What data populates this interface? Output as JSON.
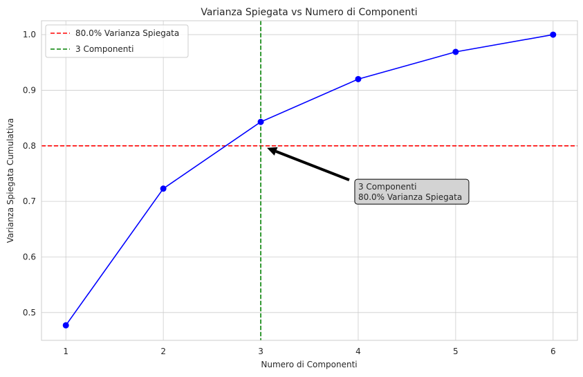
{
  "chart_data": {
    "type": "line",
    "title": "Varianza Spiegata vs Numero di Componenti",
    "xlabel": "Numero di Componenti",
    "ylabel": "Varianza Spiegata Cumulativa",
    "x": [
      1,
      2,
      3,
      4,
      5,
      6
    ],
    "series": [
      {
        "values": [
          0.477,
          0.723,
          0.843,
          0.92,
          0.969,
          1.0
        ],
        "color": "#0000ff",
        "marker": "circle"
      }
    ],
    "xlim": [
      0.75,
      6.25
    ],
    "ylim": [
      0.45,
      1.025
    ],
    "xticks": [
      1,
      2,
      3,
      4,
      5,
      6
    ],
    "yticks": [
      0.5,
      0.6,
      0.7,
      0.8,
      0.9,
      1.0
    ],
    "xtick_labels": [
      "1",
      "2",
      "3",
      "4",
      "5",
      "6"
    ],
    "ytick_labels": [
      "0.5",
      "0.6",
      "0.7",
      "0.8",
      "0.9",
      "1.0"
    ],
    "grid": true,
    "legend_position": "top-left",
    "reference_lines": [
      {
        "orientation": "horizontal",
        "value": 0.8,
        "color": "#ff0000",
        "style": "dashed",
        "label": "80.0% Varianza Spiegata"
      },
      {
        "orientation": "vertical",
        "value": 3,
        "color": "#008000",
        "style": "dashed",
        "label": "3 Componenti"
      }
    ],
    "annotation": {
      "lines": [
        "3 Componenti",
        "80.0% Varianza Spiegata"
      ],
      "points_to": [
        3,
        0.8
      ],
      "text_at": [
        4,
        0.7
      ],
      "box_color": "#d3d3d3"
    }
  }
}
